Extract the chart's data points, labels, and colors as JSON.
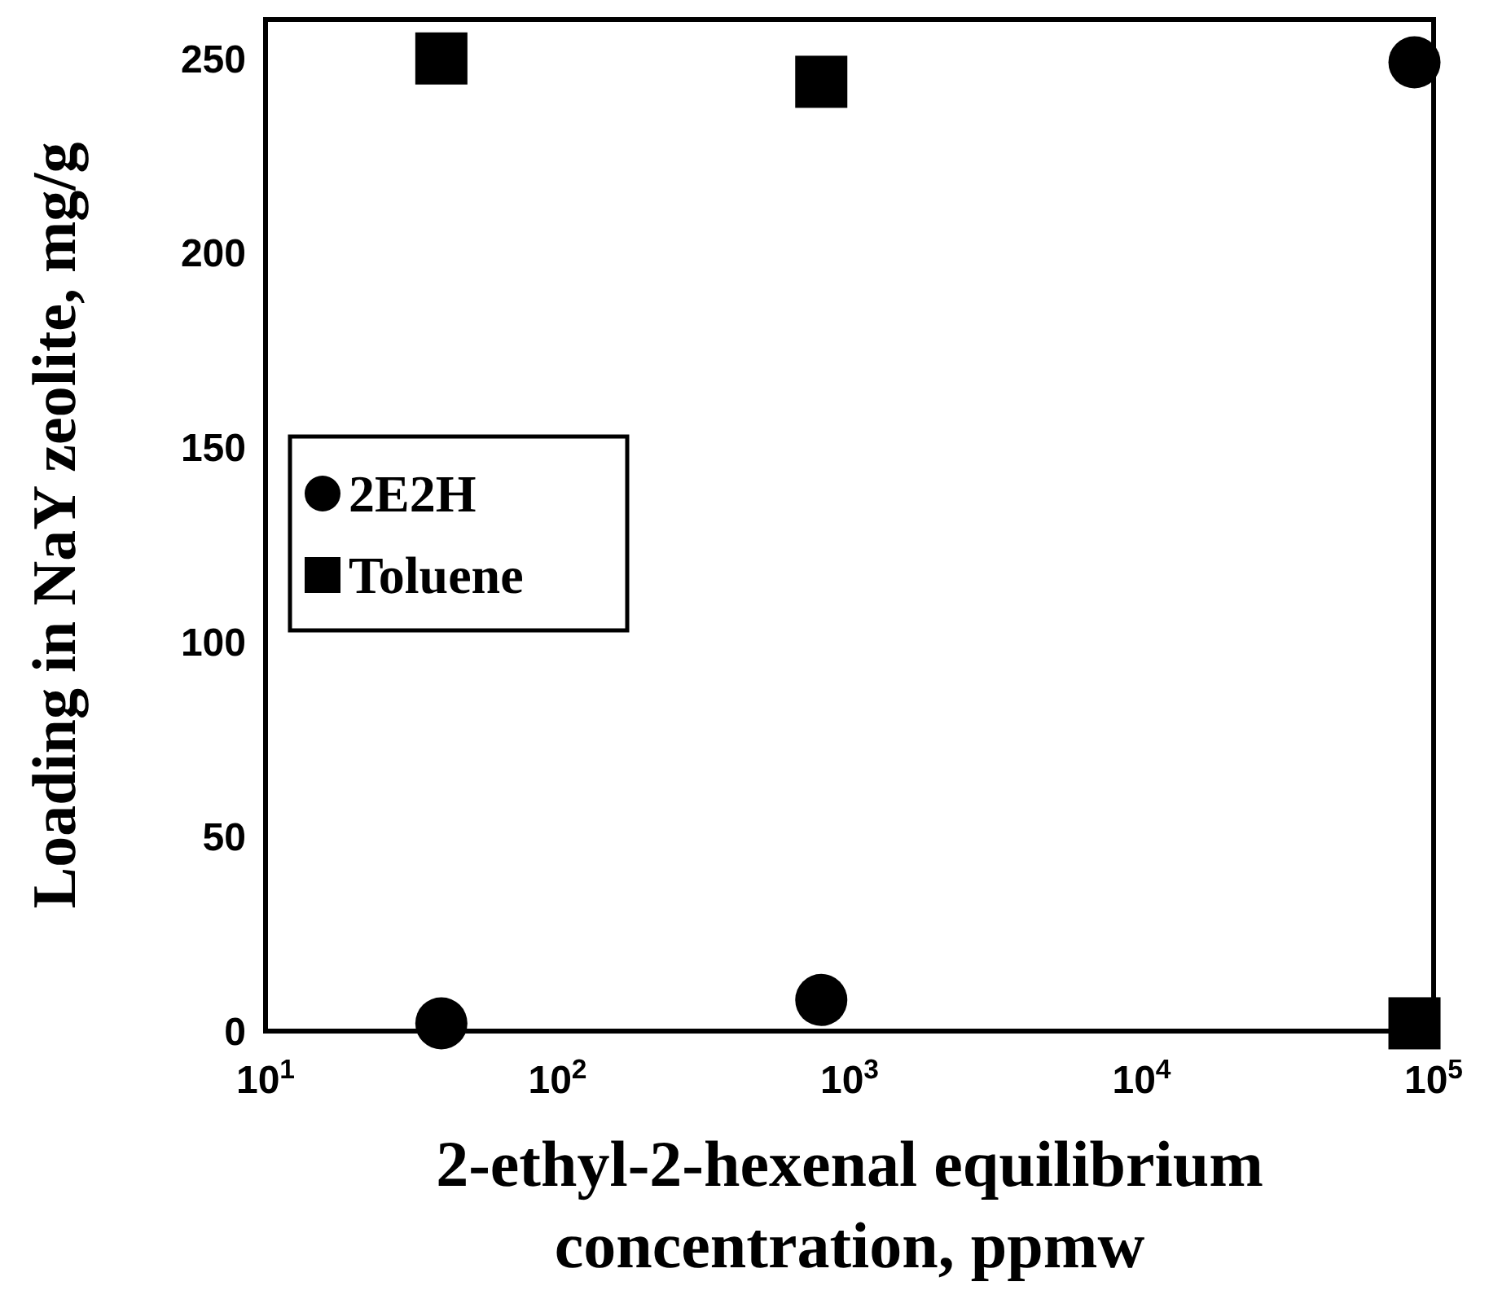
{
  "chart_data": {
    "type": "scatter",
    "xlabel": "2-ethyl-2-hexenal equilibrium concentration, ppmw",
    "ylabel": "Loading in NaY zeolite, mg/g",
    "log": "x",
    "xlim": [
      10,
      100000
    ],
    "ylim": [
      0,
      260
    ],
    "xticks": [
      {
        "value": 10,
        "label": "10$^{1}$"
      },
      {
        "value": 100,
        "label": "10$^{2}$"
      },
      {
        "value": 1000,
        "label": "10$^{3}$"
      },
      {
        "value": 10000,
        "label": "10$^{4}$"
      },
      {
        "value": 100000,
        "label": "10$^{5}$"
      }
    ],
    "yticks": [
      0,
      50,
      100,
      150,
      200,
      250
    ],
    "grid": false,
    "legend": "left",
    "series": [
      {
        "name": "2E2H",
        "color": "#000000",
        "marker": "circle",
        "x": [
          40,
          800,
          86000
        ],
        "values": [
          2,
          8,
          249
        ]
      },
      {
        "name": "Toluene",
        "color": "#000000",
        "marker": "square",
        "x": [
          40,
          800,
          86000
        ],
        "values": [
          250,
          244,
          2
        ]
      }
    ]
  }
}
